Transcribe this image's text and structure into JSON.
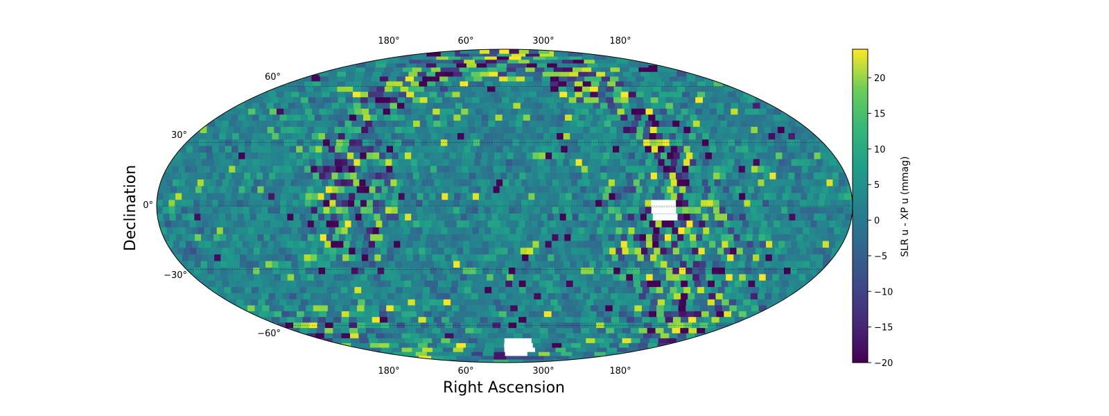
{
  "chart_data": {
    "type": "heatmap",
    "projection": "mollweide",
    "title": "",
    "xlabel": "Right Ascension",
    "ylabel": "Declination",
    "x_tick_labels": [
      "180°",
      "60°",
      "300°",
      "180°"
    ],
    "y_tick_labels": [
      "60°",
      "30°",
      "0°",
      "−30°",
      "−60°"
    ],
    "grid": true,
    "colorbar": {
      "label": "SLR u - XP u (mmag)",
      "colormap": "viridis",
      "range": [
        -20,
        24
      ],
      "ticks": [
        20,
        15,
        10,
        5,
        0,
        -5,
        -10,
        -15,
        -20
      ],
      "tick_labels": [
        "20",
        "15",
        "10",
        "5",
        "0",
        "−5",
        "−10",
        "−15",
        "−20"
      ]
    },
    "value_summary": {
      "background_typical_mmag": [
        -5,
        5
      ],
      "high_variance_regions": [
        {
          "name": "northern arc",
          "values_mmag": [
            -20,
            24
          ]
        },
        {
          "name": "equatorial cluster near RA ~150°",
          "values_mmag": [
            -20,
            24
          ]
        },
        {
          "name": "southern polar band",
          "values_mmag": [
            -10,
            24
          ]
        }
      ],
      "missing_data_patches": 2
    },
    "colors": {
      "viridis_low": "#440154",
      "viridis_mid": "#21918c",
      "viridis_high": "#fde725",
      "missing": "#ffffff"
    }
  }
}
